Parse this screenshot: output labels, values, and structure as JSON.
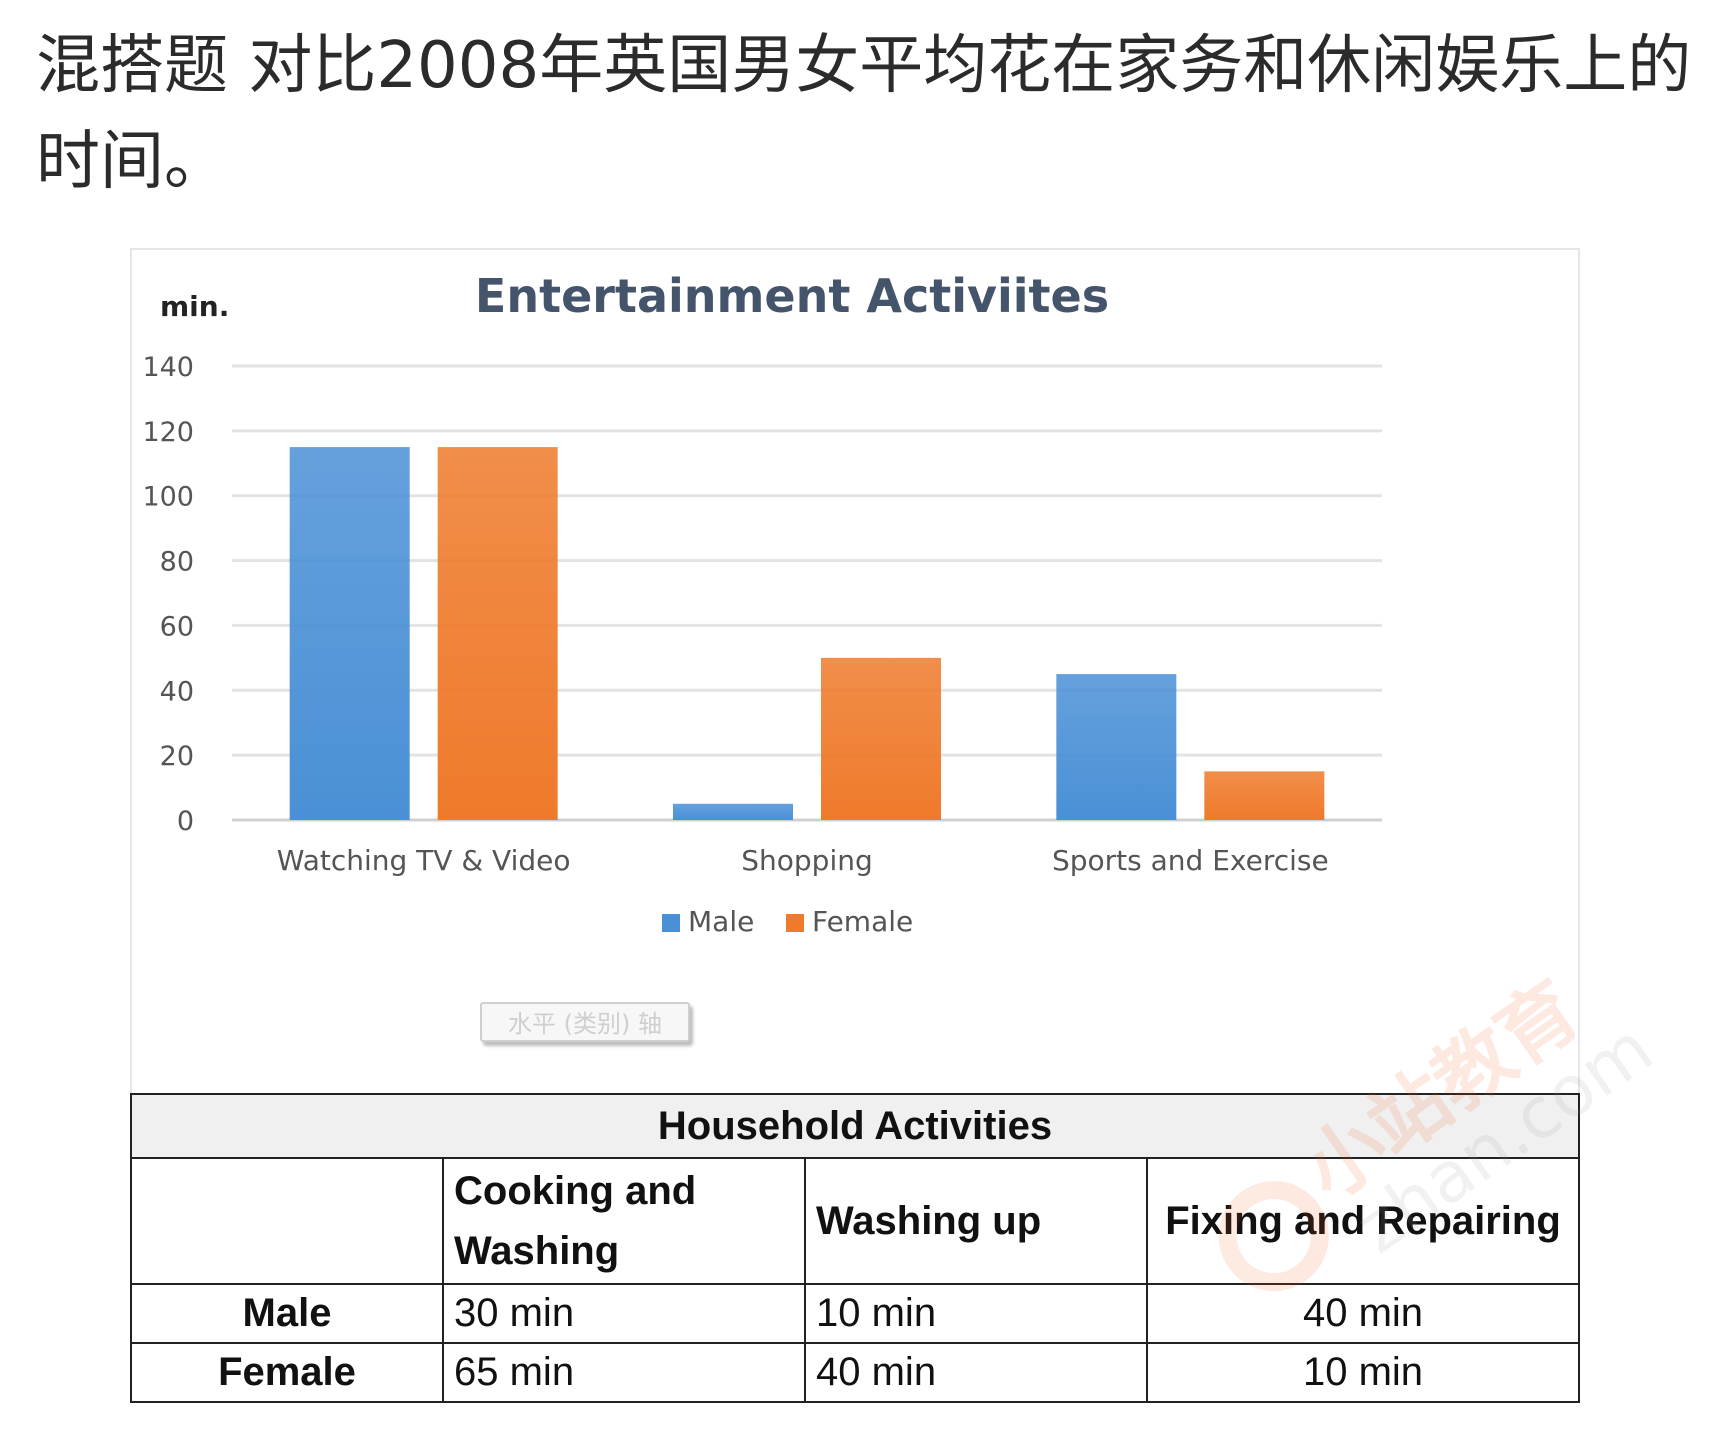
{
  "question": "混搭题 对比2008年英国男女平均花在家务和休闲娱乐上的时间。",
  "chart_data": {
    "type": "bar",
    "title": "Entertainment Activiites",
    "ylabel": "min.",
    "xlabel": "",
    "categories": [
      "Watching TV & Video",
      "Shopping",
      "Sports and Exercise"
    ],
    "series": [
      {
        "name": "Male",
        "values": [
          115,
          5,
          45
        ],
        "color": "#4a90d6"
      },
      {
        "name": "Female",
        "values": [
          115,
          50,
          15
        ],
        "color": "#ef7a2b"
      }
    ],
    "ylim": [
      0,
      140
    ],
    "yticks": [
      0,
      20,
      40,
      60,
      80,
      100,
      120,
      140
    ],
    "grid": true,
    "legend_position": "bottom-center",
    "axis_placeholder": "水平 (类别) 轴"
  },
  "household": {
    "title": "Household Activities",
    "columns": [
      "Cooking and Washing",
      "Washing up",
      "Fixing and Repairing"
    ],
    "rows": [
      {
        "label": "Male",
        "values": [
          "30 min",
          "10 min",
          "40 min"
        ]
      },
      {
        "label": "Female",
        "values": [
          "65 min",
          "40 min",
          "10 min"
        ]
      }
    ]
  },
  "watermark": {
    "brand": "小站教育",
    "site": "zhan.com"
  }
}
